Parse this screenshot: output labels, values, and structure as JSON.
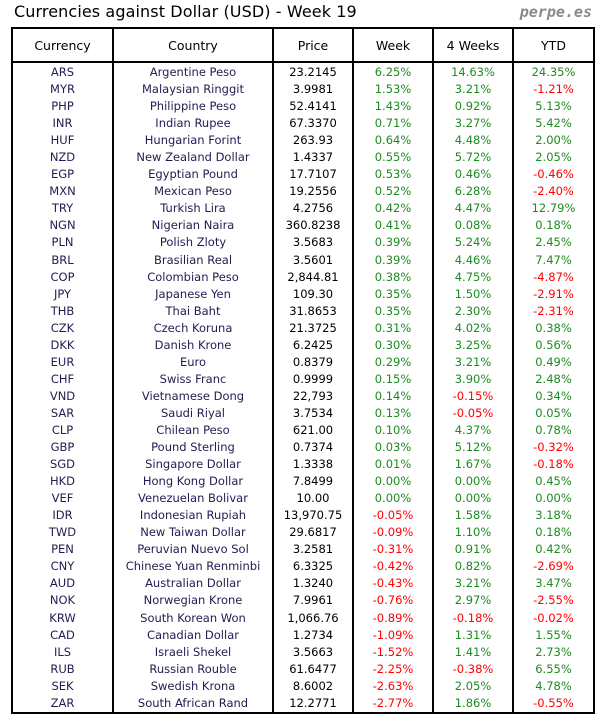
{
  "title": "Currencies against Dollar (USD) - Week 19",
  "brand": "perpe.es",
  "colors": {
    "positive": "#1f8a1f",
    "negative": "#ff0000"
  },
  "headers": [
    "Currency",
    "Country",
    "Price",
    "Week",
    "4 Weeks",
    "YTD"
  ],
  "rows": [
    [
      "ARS",
      "Argentine Peso",
      "23.2145",
      "6.25%",
      "14.63%",
      "24.35%"
    ],
    [
      "MYR",
      "Malaysian Ringgit",
      "3.9981",
      "1.53%",
      "3.21%",
      "-1.21%"
    ],
    [
      "PHP",
      "Philippine Peso",
      "52.4141",
      "1.43%",
      "0.92%",
      "5.13%"
    ],
    [
      "INR",
      "Indian Rupee",
      "67.3370",
      "0.71%",
      "3.27%",
      "5.42%"
    ],
    [
      "HUF",
      "Hungarian Forint",
      "263.93",
      "0.64%",
      "4.48%",
      "2.00%"
    ],
    [
      "NZD",
      "New Zealand Dollar",
      "1.4337",
      "0.55%",
      "5.72%",
      "2.05%"
    ],
    [
      "EGP",
      "Egyptian Pound",
      "17.7107",
      "0.53%",
      "0.46%",
      "-0.46%"
    ],
    [
      "MXN",
      "Mexican Peso",
      "19.2556",
      "0.52%",
      "6.28%",
      "-2.40%"
    ],
    [
      "TRY",
      "Turkish Lira",
      "4.2756",
      "0.42%",
      "4.47%",
      "12.79%"
    ],
    [
      "NGN",
      "Nigerian Naira",
      "360.8238",
      "0.41%",
      "0.08%",
      "0.18%"
    ],
    [
      "PLN",
      "Polish Zloty",
      "3.5683",
      "0.39%",
      "5.24%",
      "2.45%"
    ],
    [
      "BRL",
      "Brasilian Real",
      "3.5601",
      "0.39%",
      "4.46%",
      "7.47%"
    ],
    [
      "COP",
      "Colombian Peso",
      "2,844.81",
      "0.38%",
      "4.75%",
      "-4.87%"
    ],
    [
      "JPY",
      "Japanese Yen",
      "109.30",
      "0.35%",
      "1.50%",
      "-2.91%"
    ],
    [
      "THB",
      "Thai Baht",
      "31.8653",
      "0.35%",
      "2.30%",
      "-2.31%"
    ],
    [
      "CZK",
      "Czech Koruna",
      "21.3725",
      "0.31%",
      "4.02%",
      "0.38%"
    ],
    [
      "DKK",
      "Danish Krone",
      "6.2425",
      "0.30%",
      "3.25%",
      "0.56%"
    ],
    [
      "EUR",
      "Euro",
      "0.8379",
      "0.29%",
      "3.21%",
      "0.49%"
    ],
    [
      "CHF",
      "Swiss Franc",
      "0.9999",
      "0.15%",
      "3.90%",
      "2.48%"
    ],
    [
      "VND",
      "Vietnamese Dong",
      "22,793",
      "0.14%",
      "-0.15%",
      "0.34%"
    ],
    [
      "SAR",
      "Saudi Riyal",
      "3.7534",
      "0.13%",
      "-0.05%",
      "0.05%"
    ],
    [
      "CLP",
      "Chilean Peso",
      "621.00",
      "0.10%",
      "4.37%",
      "0.78%"
    ],
    [
      "GBP",
      "Pound Sterling",
      "0.7374",
      "0.03%",
      "5.12%",
      "-0.32%"
    ],
    [
      "SGD",
      "Singapore Dollar",
      "1.3338",
      "0.01%",
      "1.67%",
      "-0.18%"
    ],
    [
      "HKD",
      "Hong Kong Dollar",
      "7.8499",
      "0.00%",
      "0.00%",
      "0.45%"
    ],
    [
      "VEF",
      "Venezuelan Bolivar",
      "10.00",
      "0.00%",
      "0.00%",
      "0.00%"
    ],
    [
      "IDR",
      "Indonesian Rupiah",
      "13,970.75",
      "-0.05%",
      "1.58%",
      "3.18%"
    ],
    [
      "TWD",
      "New Taiwan Dollar",
      "29.6817",
      "-0.09%",
      "1.10%",
      "0.18%"
    ],
    [
      "PEN",
      "Peruvian Nuevo Sol",
      "3.2581",
      "-0.31%",
      "0.91%",
      "0.42%"
    ],
    [
      "CNY",
      "Chinese Yuan Renminbi",
      "6.3325",
      "-0.42%",
      "0.82%",
      "-2.69%"
    ],
    [
      "AUD",
      "Australian Dollar",
      "1.3240",
      "-0.43%",
      "3.21%",
      "3.47%"
    ],
    [
      "NOK",
      "Norwegian Krone",
      "7.9961",
      "-0.76%",
      "2.97%",
      "-2.55%"
    ],
    [
      "KRW",
      "South Korean Won",
      "1,066.76",
      "-0.89%",
      "-0.18%",
      "-0.02%"
    ],
    [
      "CAD",
      "Canadian Dollar",
      "1.2734",
      "-1.09%",
      "1.31%",
      "1.55%"
    ],
    [
      "ILS",
      "Israeli Shekel",
      "3.5663",
      "-1.52%",
      "1.41%",
      "2.73%"
    ],
    [
      "RUB",
      "Russian Rouble",
      "61.6477",
      "-2.25%",
      "-0.38%",
      "6.55%"
    ],
    [
      "SEK",
      "Swedish Krona",
      "8.6002",
      "-2.63%",
      "2.05%",
      "4.78%"
    ],
    [
      "ZAR",
      "South African Rand",
      "12.2771",
      "-2.77%",
      "1.86%",
      "-0.55%"
    ]
  ]
}
